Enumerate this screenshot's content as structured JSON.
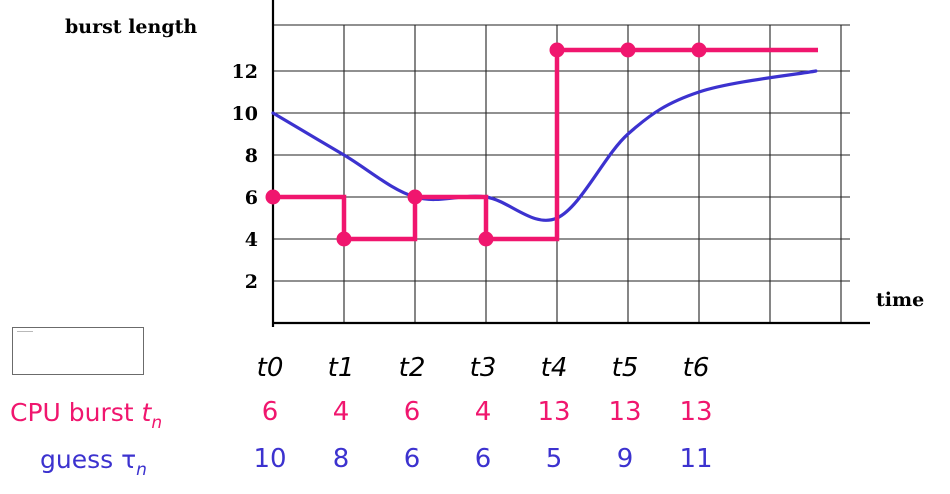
{
  "chart_data": {
    "type": "line",
    "ylabel": "burst length",
    "xlabel": "time",
    "y_ticks": [
      "2",
      "4",
      "6",
      "8",
      "10",
      "12"
    ],
    "x_ticks": [
      "t0",
      "t1",
      "t2",
      "t3",
      "t4",
      "t5",
      "t6"
    ],
    "ylim": [
      0,
      14
    ],
    "grid": true,
    "series": [
      {
        "name": "CPU burst",
        "color": "#f0166e",
        "style": "step",
        "x": [
          0,
          1,
          2,
          3,
          4,
          5,
          6
        ],
        "values": [
          6,
          4,
          6,
          4,
          13,
          13,
          13
        ]
      },
      {
        "name": "guess",
        "color": "#3c32cf",
        "style": "smooth",
        "x": [
          0,
          1,
          2,
          3,
          4,
          5,
          6
        ],
        "values": [
          10,
          8,
          6,
          6,
          5,
          9,
          11
        ]
      }
    ]
  },
  "table": {
    "burst_label": "CPU burst ",
    "burst_symbol": "t",
    "burst_sub": "n",
    "guess_label": "guess ",
    "guess_symbol": "τ",
    "guess_sub": "n",
    "burst_values": [
      "6",
      "4",
      "6",
      "4",
      "13",
      "13",
      "13"
    ],
    "guess_values": [
      "10",
      "8",
      "6",
      "6",
      "5",
      "9",
      "11"
    ]
  }
}
